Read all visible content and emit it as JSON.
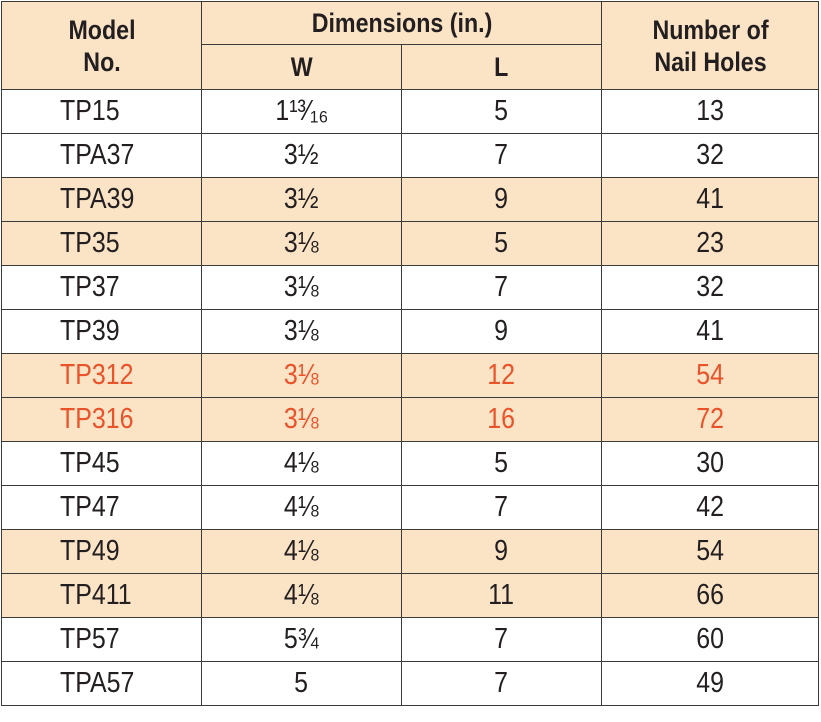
{
  "header": {
    "model_no": "Model\nNo.",
    "dimensions": "Dimensions (in.)",
    "w": "W",
    "l": "L",
    "nail_holes": "Number of\nNail Holes"
  },
  "colors": {
    "shade": "#fbe3c6",
    "highlight_text": "#e8532a",
    "text": "#231f20",
    "border": "#3a3a3a"
  },
  "rows": [
    {
      "model": "TP15",
      "w": "1¹³⁄₁₆",
      "l": "5",
      "nail_holes": "13",
      "shaded": false,
      "highlight": false
    },
    {
      "model": "TPA37",
      "w": "3½",
      "l": "7",
      "nail_holes": "32",
      "shaded": false,
      "highlight": false
    },
    {
      "model": "TPA39",
      "w": "3½",
      "l": "9",
      "nail_holes": "41",
      "shaded": true,
      "highlight": false
    },
    {
      "model": "TP35",
      "w": "3⅛",
      "l": "5",
      "nail_holes": "23",
      "shaded": true,
      "highlight": false
    },
    {
      "model": "TP37",
      "w": "3⅛",
      "l": "7",
      "nail_holes": "32",
      "shaded": false,
      "highlight": false
    },
    {
      "model": "TP39",
      "w": "3⅛",
      "l": "9",
      "nail_holes": "41",
      "shaded": false,
      "highlight": false
    },
    {
      "model": "TP312",
      "w": "3⅛",
      "l": "12",
      "nail_holes": "54",
      "shaded": true,
      "highlight": true
    },
    {
      "model": "TP316",
      "w": "3⅛",
      "l": "16",
      "nail_holes": "72",
      "shaded": true,
      "highlight": true
    },
    {
      "model": "TP45",
      "w": "4⅛",
      "l": "5",
      "nail_holes": "30",
      "shaded": false,
      "highlight": false
    },
    {
      "model": "TP47",
      "w": "4⅛",
      "l": "7",
      "nail_holes": "42",
      "shaded": false,
      "highlight": false
    },
    {
      "model": "TP49",
      "w": "4⅛",
      "l": "9",
      "nail_holes": "54",
      "shaded": true,
      "highlight": false
    },
    {
      "model": "TP411",
      "w": "4⅛",
      "l": "11",
      "nail_holes": "66",
      "shaded": true,
      "highlight": false
    },
    {
      "model": "TP57",
      "w": "5¾",
      "l": "7",
      "nail_holes": "60",
      "shaded": false,
      "highlight": false
    },
    {
      "model": "TPA57",
      "w": "5",
      "l": "7",
      "nail_holes": "49",
      "shaded": false,
      "highlight": false
    }
  ]
}
